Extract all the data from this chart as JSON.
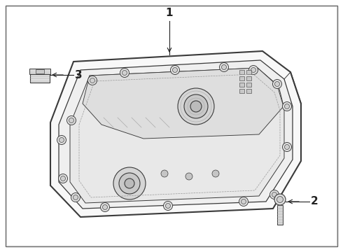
{
  "bg_color": "#f2f2f2",
  "border_color": "#555555",
  "line_color": "#3a3a3a",
  "light_color": "#aaaaaa",
  "fill_outer": "#f8f8f8",
  "fill_inner": "#efefef",
  "fill_floor": "#e8e8e8",
  "fill_ridge": "#dedede",
  "fill_boss": "#d8d8d8",
  "text_color": "#222222",
  "label_1": "1",
  "label_2": "2",
  "label_3": "3",
  "fig_width": 4.9,
  "fig_height": 3.6,
  "dpi": 100
}
